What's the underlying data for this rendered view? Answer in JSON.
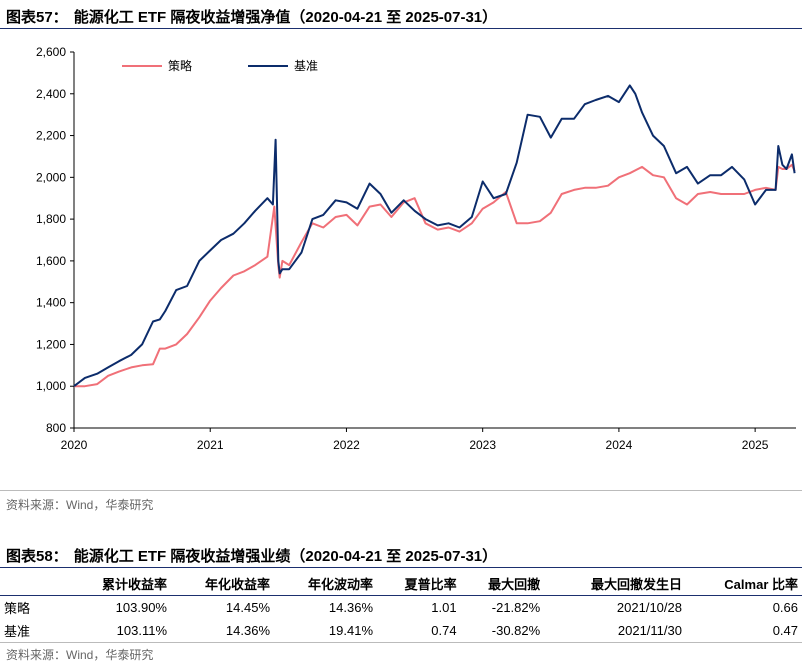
{
  "figure1": {
    "label": "图表57：",
    "title": "能源化工 ETF 隔夜收益增强净值（2020-04-21 至 2025-07-31）",
    "source": "资料来源：Wind，华泰研究"
  },
  "figure2": {
    "label": "图表58：",
    "title": "能源化工 ETF 隔夜收益增强业绩（2020-04-21 至 2025-07-31）",
    "source": "资料来源：Wind，华泰研究",
    "columns": [
      "",
      "累计收益率",
      "年化收益率",
      "年化波动率",
      "夏普比率",
      "最大回撤",
      "最大回撤发生日",
      "Calmar 比率"
    ],
    "rows": [
      {
        "name": "策略",
        "cells": [
          "103.90%",
          "14.45%",
          "14.36%",
          "1.01",
          "-21.82%",
          "2021/10/28",
          "0.66"
        ]
      },
      {
        "name": "基准",
        "cells": [
          "103.11%",
          "14.36%",
          "19.41%",
          "0.74",
          "-30.82%",
          "2021/11/30",
          "0.47"
        ]
      }
    ]
  },
  "chart_data": {
    "type": "line",
    "title": "能源化工 ETF 隔夜收益增强净值（2020-04-21 至 2025-07-31）",
    "xlabel": "",
    "ylabel": "",
    "xlim": [
      2020.0,
      2025.3
    ],
    "ylim": [
      800,
      2600
    ],
    "yticks": [
      800,
      1000,
      1200,
      1400,
      1600,
      1800,
      2000,
      2200,
      2400,
      2600
    ],
    "ytick_labels": [
      "800",
      "1,000",
      "1,200",
      "1,400",
      "1,600",
      "1,800",
      "2,000",
      "2,200",
      "2,400",
      "2,600"
    ],
    "xticks": [
      2020,
      2021,
      2022,
      2023,
      2024,
      2025
    ],
    "xtick_labels": [
      "2020",
      "2021",
      "2022",
      "2023",
      "2024",
      "2025"
    ],
    "legend_position": "top-left",
    "series": [
      {
        "name": "策略",
        "color": "#f07078",
        "x": [
          2020.0,
          2020.08,
          2020.17,
          2020.25,
          2020.33,
          2020.42,
          2020.5,
          2020.58,
          2020.63,
          2020.67,
          2020.75,
          2020.83,
          2020.92,
          2021.0,
          2021.08,
          2021.17,
          2021.25,
          2021.33,
          2021.42,
          2021.47,
          2021.5,
          2021.51,
          2021.53,
          2021.58,
          2021.67,
          2021.75,
          2021.83,
          2021.92,
          2022.0,
          2022.08,
          2022.17,
          2022.25,
          2022.33,
          2022.42,
          2022.5,
          2022.58,
          2022.67,
          2022.75,
          2022.83,
          2022.92,
          2023.0,
          2023.08,
          2023.17,
          2023.25,
          2023.33,
          2023.42,
          2023.5,
          2023.58,
          2023.67,
          2023.75,
          2023.83,
          2023.92,
          2024.0,
          2024.08,
          2024.17,
          2024.25,
          2024.33,
          2024.42,
          2024.5,
          2024.58,
          2024.67,
          2024.75,
          2024.83,
          2024.92,
          2025.0,
          2025.08,
          2025.15,
          2025.17,
          2025.2,
          2025.23,
          2025.27,
          2025.29
        ],
        "values": [
          1000,
          1000,
          1010,
          1050,
          1070,
          1090,
          1100,
          1105,
          1180,
          1180,
          1200,
          1250,
          1330,
          1410,
          1470,
          1530,
          1550,
          1580,
          1620,
          1860,
          1580,
          1520,
          1600,
          1580,
          1690,
          1780,
          1760,
          1810,
          1820,
          1770,
          1860,
          1870,
          1810,
          1880,
          1900,
          1780,
          1750,
          1760,
          1740,
          1780,
          1850,
          1880,
          1930,
          1780,
          1780,
          1790,
          1830,
          1920,
          1940,
          1950,
          1950,
          1960,
          2000,
          2020,
          2050,
          2010,
          2000,
          1900,
          1870,
          1920,
          1930,
          1920,
          1920,
          1920,
          1940,
          1950,
          1940,
          2050,
          2040,
          2040,
          2060,
          2030
        ]
      },
      {
        "name": "基准",
        "color": "#0c2c6b",
        "x": [
          2020.0,
          2020.08,
          2020.17,
          2020.25,
          2020.33,
          2020.42,
          2020.5,
          2020.58,
          2020.63,
          2020.67,
          2020.75,
          2020.83,
          2020.92,
          2021.0,
          2021.08,
          2021.17,
          2021.25,
          2021.33,
          2021.42,
          2021.46,
          2021.48,
          2021.5,
          2021.51,
          2021.53,
          2021.58,
          2021.67,
          2021.75,
          2021.83,
          2021.92,
          2022.0,
          2022.08,
          2022.17,
          2022.25,
          2022.33,
          2022.42,
          2022.5,
          2022.58,
          2022.67,
          2022.75,
          2022.83,
          2022.92,
          2023.0,
          2023.08,
          2023.17,
          2023.25,
          2023.33,
          2023.42,
          2023.5,
          2023.58,
          2023.67,
          2023.75,
          2023.83,
          2023.92,
          2024.0,
          2024.08,
          2024.12,
          2024.17,
          2024.25,
          2024.33,
          2024.42,
          2024.5,
          2024.58,
          2024.67,
          2024.75,
          2024.83,
          2024.92,
          2025.0,
          2025.08,
          2025.15,
          2025.17,
          2025.2,
          2025.23,
          2025.27,
          2025.29
        ],
        "values": [
          1000,
          1040,
          1060,
          1090,
          1120,
          1150,
          1200,
          1310,
          1320,
          1360,
          1460,
          1480,
          1600,
          1650,
          1700,
          1730,
          1780,
          1840,
          1900,
          1870,
          2180,
          1600,
          1540,
          1560,
          1560,
          1640,
          1800,
          1820,
          1890,
          1880,
          1850,
          1970,
          1920,
          1830,
          1890,
          1840,
          1800,
          1770,
          1780,
          1760,
          1810,
          1980,
          1900,
          1920,
          2070,
          2300,
          2290,
          2190,
          2280,
          2280,
          2350,
          2370,
          2390,
          2360,
          2440,
          2400,
          2310,
          2200,
          2150,
          2020,
          2050,
          1970,
          2010,
          2010,
          2050,
          1990,
          1870,
          1940,
          1940,
          2150,
          2060,
          2040,
          2110,
          2020
        ]
      }
    ]
  }
}
